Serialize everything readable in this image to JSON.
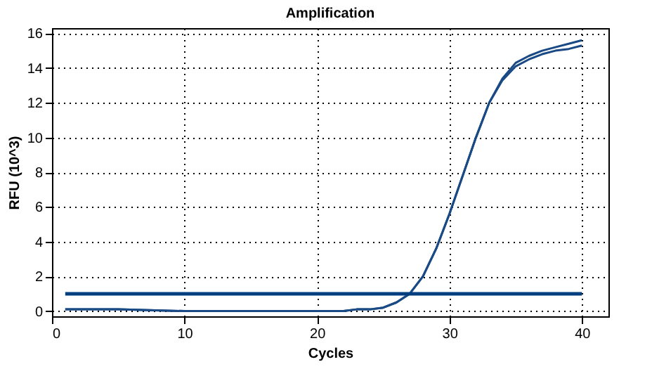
{
  "chart_data": {
    "type": "line",
    "title": "Amplification",
    "xlabel": "Cycles",
    "ylabel": "RFU (10^3)",
    "x": [
      1,
      5,
      10,
      15,
      20,
      22,
      23,
      24,
      25,
      26,
      27,
      28,
      29,
      30,
      31,
      32,
      33,
      34,
      35,
      36,
      37,
      38,
      39,
      40
    ],
    "series": [
      {
        "color": "#1a4a85",
        "values": [
          0.1,
          0.1,
          0.0,
          0.0,
          0.0,
          0.0,
          0.1,
          0.1,
          0.2,
          0.5,
          1.0,
          2.0,
          3.6,
          5.6,
          7.8,
          10.0,
          12.0,
          13.4,
          14.3,
          14.7,
          15.0,
          15.2,
          15.4,
          15.6
        ]
      },
      {
        "color": "#1a4a85",
        "values": [
          0.1,
          0.1,
          0.0,
          0.0,
          0.0,
          0.0,
          0.1,
          0.1,
          0.2,
          0.5,
          1.0,
          2.0,
          3.6,
          5.6,
          7.8,
          10.0,
          12.0,
          13.3,
          14.1,
          14.5,
          14.8,
          15.0,
          15.1,
          15.3
        ]
      }
    ],
    "ref_lines": [
      {
        "axis": "y",
        "value": 1.0,
        "color": "#003f7f"
      }
    ],
    "xlim": [
      0,
      42
    ],
    "xticks": [
      0,
      10,
      20,
      30,
      40
    ],
    "ylim": [
      -0.3,
      16.3
    ],
    "yticks": [
      0,
      2,
      4,
      6,
      8,
      10,
      12,
      14,
      16
    ],
    "grid": true,
    "marker": "none",
    "line_style": "solid"
  }
}
